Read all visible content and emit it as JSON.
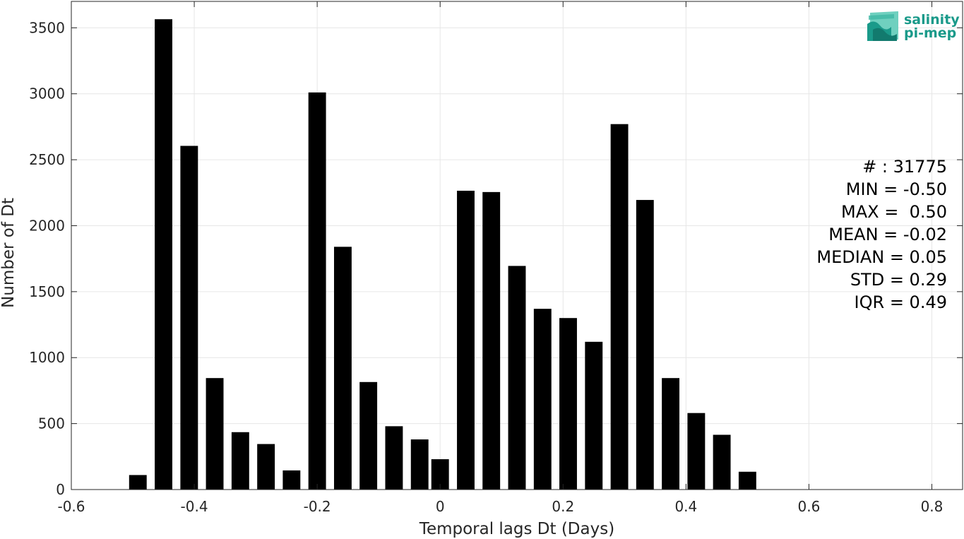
{
  "chart_data": {
    "type": "bar",
    "xlabel": "Temporal lags Dt (Days)",
    "ylabel": "Number of Dt",
    "xlim": [
      -0.6,
      0.85
    ],
    "ylim": [
      0,
      3700
    ],
    "xticks": [
      -0.6,
      -0.4,
      -0.2,
      0,
      0.2,
      0.4,
      0.6,
      0.8
    ],
    "xtick_labels": [
      "-0.6",
      "-0.4",
      "-0.2",
      "0",
      "0.2",
      "0.4",
      "0.6",
      "0.8"
    ],
    "yticks": [
      0,
      500,
      1000,
      1500,
      2000,
      2500,
      3000,
      3500
    ],
    "ytick_labels": [
      "0",
      "500",
      "1000",
      "1500",
      "2000",
      "2500",
      "3000",
      "3500"
    ],
    "grid": true,
    "bar_color": "#000000",
    "bar_width": 0.0286,
    "x": [
      -0.4917,
      -0.45,
      -0.4083,
      -0.3667,
      -0.325,
      -0.2833,
      -0.2417,
      -0.2,
      -0.1583,
      -0.1167,
      -0.075,
      -0.0333,
      0.0,
      0.0417,
      0.0833,
      0.125,
      0.1667,
      0.2083,
      0.25,
      0.2917,
      0.3333,
      0.375,
      0.4167,
      0.4583,
      0.5
    ],
    "values": [
      110,
      3565,
      2605,
      845,
      435,
      345,
      145,
      3010,
      1840,
      815,
      480,
      380,
      230,
      2265,
      2255,
      1695,
      1370,
      1300,
      1120,
      2770,
      2195,
      845,
      580,
      415,
      135
    ]
  },
  "stats": [
    "# : 31775",
    "MIN = -0.50",
    "MAX =  0.50",
    "MEAN = -0.02",
    "MEDIAN = 0.05",
    "STD = 0.29",
    "IQR = 0.49"
  ],
  "logo": {
    "line1": "salinity",
    "line2": "pi-mep",
    "color": "#1a9a8a"
  }
}
